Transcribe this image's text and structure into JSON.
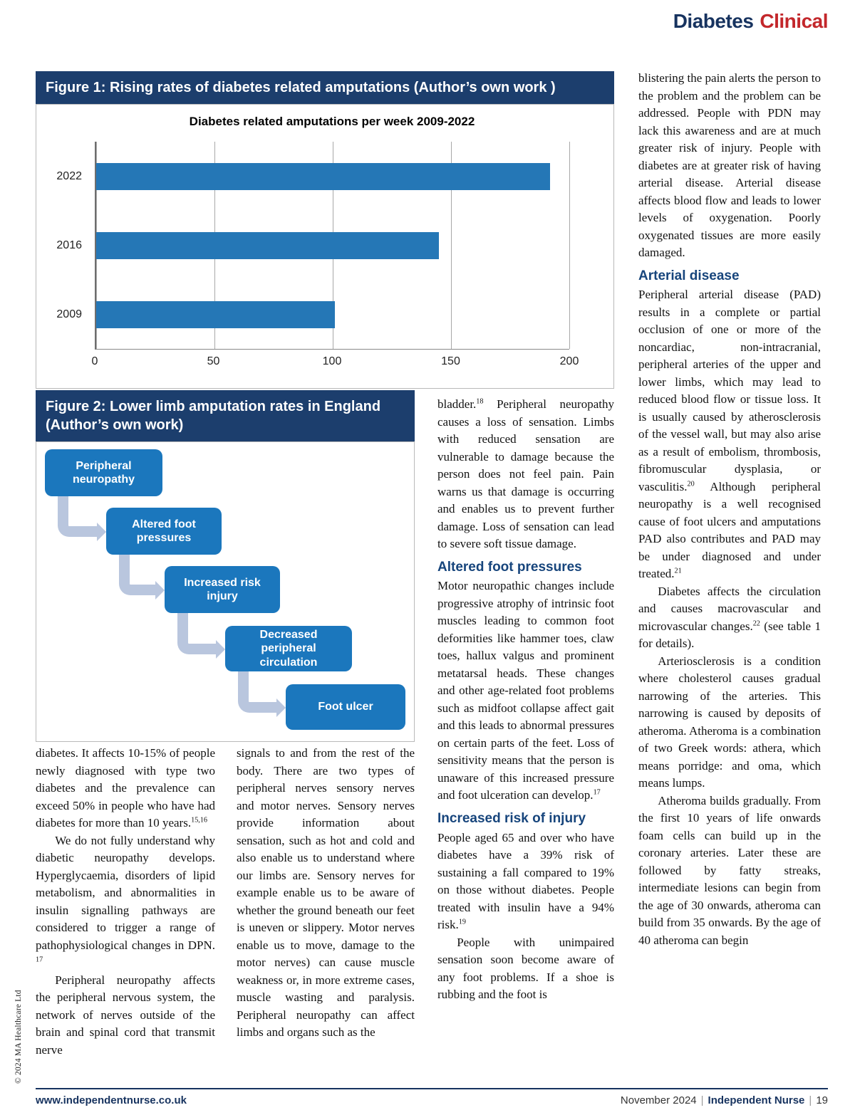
{
  "page": {
    "brand": {
      "word1": "Diabetes",
      "word2": "Clinical"
    },
    "copyright": "© 2024 MA Healthcare Ltd",
    "footer": {
      "url": "www.independentnurse.co.uk",
      "date": "November 2024",
      "sep": "|",
      "magazine": "Independent Nurse",
      "page_number": "19"
    }
  },
  "figure1": {
    "title": "Figure 1: Rising rates of diabetes related amputations (Author’s own work )"
  },
  "chart_data": {
    "type": "bar",
    "orientation": "horizontal",
    "title": "Diabetes related amputations per week 2009-2022",
    "categories": [
      "2022",
      "2016",
      "2009"
    ],
    "values": [
      192,
      145,
      101
    ],
    "xlim": [
      0,
      200
    ],
    "xticks": [
      0,
      50,
      100,
      150,
      200
    ],
    "bar_color": "#2577b6",
    "grid": true,
    "legend": "none"
  },
  "figure2": {
    "title": "Figure 2: Lower limb amputation rates in England (Author’s own work)",
    "boxes": [
      "Peripheral neuropathy",
      "Altered foot pressures",
      "Increased risk injury",
      "Decreased peripheral circulation",
      "Foot ulcer"
    ]
  },
  "articles": {
    "bottom_left": [
      {
        "type": "p",
        "text": "diabetes. It affects 10-15% of people newly diagnosed with type two diabetes and the prevalence can exceed 50% in people who have had diabetes for more than 10 years.^{15,16}"
      },
      {
        "type": "p",
        "indent": true,
        "text": "We do not fully understand why diabetic neuropathy develops. Hyperglycaemia, disorders of lipid metabolism, and abnormalities in insulin signalling pathways are considered to trigger a range of pathophysiological changes in DPN. ^{17}"
      },
      {
        "type": "p",
        "indent": true,
        "text": "Peripheral neuropathy affects the peripheral nervous system, the network of nerves outside of the brain and spinal cord that transmit nerve"
      }
    ],
    "bottom_center": [
      {
        "type": "p",
        "text": "signals to and from the rest of the body. There are two types of peripheral nerves sensory nerves and motor nerves. Sensory nerves provide information about sensation, such as hot and cold and also enable us to understand where our limbs are. Sensory nerves for example enable us to be aware of whether the ground beneath our feet is uneven or slippery.  Motor nerves enable us to move, damage to the motor nerves) can cause muscle weakness or, in more extreme cases, muscle wasting and paralysis. Peripheral neuropathy can affect limbs and organs such as the"
      }
    ],
    "middle": [
      {
        "type": "p",
        "text": "bladder.^{18} Peripheral neuropathy causes a loss of sensation. Limbs with reduced sensation are vulnerable to damage because the person does not feel pain. Pain warns us that damage is occurring and enables us to prevent further damage. Loss of sensation can lead to severe soft tissue damage."
      },
      {
        "type": "h",
        "text": "Altered foot pressures"
      },
      {
        "type": "p",
        "text": "Motor neuropathic changes include progressive atrophy of intrinsic foot muscles leading to common foot deformities like hammer toes, claw toes, hallux valgus and prominent metatarsal heads. These changes and other age-related foot problems such as midfoot collapse affect gait and this leads to abnormal pressures on certain parts of the feet. Loss of sensitivity means that the person is unaware of this increased pressure and foot ulceration can develop.^{17}"
      },
      {
        "type": "h",
        "text": "Increased risk of injury"
      },
      {
        "type": "p",
        "text": "People aged 65 and over who have diabetes have a 39% risk of sustaining a fall compared to 19% on those without diabetes. People treated with insulin have a 94% risk.^{19}"
      },
      {
        "type": "p",
        "indent": true,
        "text": "People with unimpaired sensation soon become aware of any foot problems. If a shoe is rubbing and the foot is"
      }
    ],
    "right": [
      {
        "type": "p",
        "text": "blistering the pain alerts the person to the problem and the problem can be addressed. People with PDN may lack this awareness and are at much greater risk of injury. People with diabetes are at greater risk of having arterial disease. Arterial disease affects blood flow and leads to lower levels of oxygenation. Poorly oxygenated tissues are more easily damaged."
      },
      {
        "type": "h",
        "text": "Arterial disease"
      },
      {
        "type": "p",
        "text": "Peripheral arterial disease (PAD) results in a complete or partial occlusion of one or more of the noncardiac, non-intracranial, peripheral arteries of the upper and lower limbs, which may lead to reduced blood flow or tissue loss. It is usually caused by atherosclerosis of the vessel wall, but may also arise as a result of embolism, thrombosis, fibromuscular dysplasia, or vasculitis.^{20} Although peripheral neuropathy is a well recognised cause of foot ulcers and amputations PAD also contributes and PAD may be under diagnosed and under treated.^{21}"
      },
      {
        "type": "p",
        "indent": true,
        "text": "Diabetes affects the circulation and causes macrovascular and microvascular changes.^{22} (see table 1 for details)."
      },
      {
        "type": "p",
        "indent": true,
        "text": "Arteriosclerosis is a condition where cholesterol causes gradual narrowing of the arteries.  This narrowing is caused by deposits of atheroma.  Atheroma is a combination of two Greek words: athera, which means porridge: and oma, which means lumps."
      },
      {
        "type": "p",
        "indent": true,
        "text": "Atheroma builds gradually. From the first 10  years of life onwards foam cells can build up in the coronary arteries. Later these are followed by fatty streaks, intermediate lesions can begin from the age of 30 onwards, atheroma can build from 35 onwards. By the age of 40 atheroma can begin"
      }
    ]
  }
}
